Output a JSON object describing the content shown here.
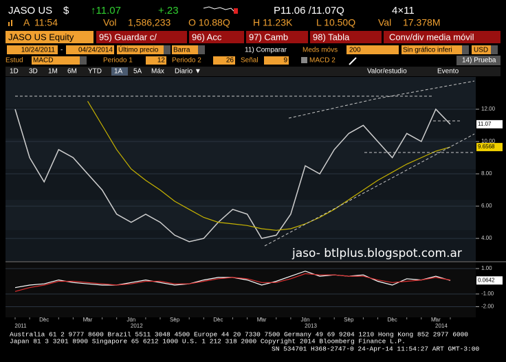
{
  "header": {
    "ticker": "JASO US",
    "currency": "$",
    "last": "↑11.07",
    "change": "+.23",
    "bid_ask": "P11.06 /11.07Q",
    "size": "4×11",
    "time_flag": "A",
    "time": "11:54",
    "vol_label": "Vol",
    "vol": "1,586,233",
    "open": "O 10.88Q",
    "high": "H 11.23K",
    "low": "L 10.50Q",
    "val_label": "Val",
    "val": "17.378M"
  },
  "menu": {
    "security": "JASO US Equity",
    "buttons": [
      "95) Guardar c/",
      "96) Acc",
      "97) Camb",
      "98) Tabla"
    ],
    "title": "Conv/div media móvil"
  },
  "settings": {
    "start": "10/24/2011",
    "dash": "-",
    "end": "04/24/2014",
    "price_field": "Último precio",
    "style": "Barra",
    "compare": "11) Comparar",
    "ma_label": "Meds móvs",
    "ma": "200",
    "lower": "Sin gráfico inferi",
    "ccy": "USD"
  },
  "study": {
    "label": "Estud",
    "study": "MACD",
    "p1_label": "Periodo 1",
    "p1": "12",
    "p2_label": "Periodo 2",
    "p2": "26",
    "signal_label": "Señal",
    "signal": "9",
    "macd2": "MACD 2",
    "test": "14) Prueba"
  },
  "tabs": [
    "1D",
    "3D",
    "1M",
    "6M",
    "YTD",
    "1A",
    "5A",
    "Máx",
    "Diario ▼"
  ],
  "tab_right": [
    "Valor/estudio",
    "Evento"
  ],
  "chart_data": [
    {
      "type": "line",
      "categories": [
        null,
        null,
        "Dec",
        null,
        null,
        "Mar",
        null,
        null,
        "Jun",
        null,
        null,
        "Sep",
        null,
        null,
        "Dec",
        null,
        null,
        "Mar",
        null,
        null,
        "Jun",
        null,
        null,
        "Sep",
        null,
        null,
        "Dec",
        null,
        null,
        "Mar",
        null
      ],
      "year_labels": [
        "2011",
        null,
        null,
        null,
        null,
        null,
        null,
        null,
        "2012",
        null,
        null,
        null,
        null,
        null,
        null,
        null,
        null,
        null,
        null,
        null,
        "2013",
        null,
        null,
        null,
        null,
        null,
        null,
        null,
        null,
        "2014",
        null
      ],
      "series": [
        {
          "color": "#d0d0d0",
          "values": [
            12.0,
            9.0,
            7.5,
            9.5,
            9.0,
            8.0,
            7.0,
            5.5,
            5.0,
            5.5,
            5.0,
            4.2,
            3.8,
            4.0,
            5.0,
            5.8,
            5.5,
            4.0,
            4.2,
            5.5,
            8.5,
            8.0,
            9.5,
            10.5,
            11.0,
            10.0,
            9.0,
            10.5,
            10.0,
            12.0,
            11.07
          ],
          "value_labels": [
            null,
            null,
            null,
            null,
            null,
            null,
            null,
            null,
            null,
            null,
            null,
            null,
            null,
            null,
            null,
            null,
            null,
            null,
            null,
            null,
            null,
            null,
            null,
            null,
            null,
            null,
            null,
            null,
            null,
            null,
            "11.07"
          ]
        },
        {
          "color": "#c8b400",
          "values": [
            null,
            null,
            null,
            null,
            null,
            12.5,
            11.0,
            9.5,
            8.3,
            7.6,
            7.0,
            6.3,
            5.8,
            5.3,
            5.0,
            4.9,
            4.8,
            4.6,
            4.5,
            4.6,
            4.9,
            5.3,
            5.8,
            6.4,
            7.0,
            7.6,
            8.1,
            8.6,
            9.0,
            9.4,
            9.6568
          ],
          "value_labels": [
            null,
            null,
            null,
            null,
            null,
            null,
            null,
            null,
            null,
            null,
            null,
            null,
            null,
            null,
            null,
            null,
            null,
            null,
            null,
            null,
            null,
            null,
            null,
            null,
            null,
            null,
            null,
            null,
            null,
            null,
            "9.6568"
          ]
        }
      ],
      "ylim": [
        2.6,
        14
      ],
      "yticks": [
        {
          "value": 4,
          "label": "4.00"
        },
        {
          "value": 6,
          "label": "6.00"
        },
        {
          "value": 8,
          "label": "8.00"
        },
        {
          "value": 10,
          "label": "10.00"
        },
        {
          "value": 12,
          "label": "12.00"
        }
      ],
      "grid": true
    },
    {
      "type": "line",
      "series": [
        {
          "color": "#ffffff",
          "values": [
            -0.5,
            -0.3,
            -0.2,
            0.1,
            -0.1,
            -0.2,
            -0.3,
            -0.3,
            -0.1,
            0.1,
            -0.1,
            -0.3,
            -0.2,
            0.1,
            0.3,
            0.3,
            0.1,
            -0.3,
            0.0,
            0.4,
            0.8,
            0.4,
            0.5,
            0.4,
            0.5,
            0.0,
            -0.3,
            0.2,
            0.1,
            0.4,
            0.0642
          ],
          "value_labels": [
            null,
            null,
            null,
            null,
            null,
            null,
            null,
            null,
            null,
            null,
            null,
            null,
            null,
            null,
            null,
            null,
            null,
            null,
            null,
            null,
            null,
            null,
            null,
            null,
            null,
            null,
            null,
            null,
            null,
            null,
            "0.0642"
          ]
        },
        {
          "color": "#e03030",
          "values": [
            -0.8,
            -0.5,
            -0.3,
            0.0,
            0.0,
            -0.1,
            -0.2,
            -0.3,
            -0.2,
            0.0,
            0.0,
            -0.2,
            -0.2,
            0.0,
            0.2,
            0.3,
            0.2,
            -0.1,
            -0.1,
            0.2,
            0.6,
            0.5,
            0.5,
            0.4,
            0.4,
            0.1,
            -0.1,
            0.0,
            0.1,
            0.3,
            0.1
          ]
        }
      ],
      "ylim": [
        -2.84,
        1.43
      ],
      "yticks": [
        {
          "value": 1,
          "label": "1.00"
        },
        {
          "value": -1,
          "label": "-1.00"
        },
        {
          "value": -2,
          "label": "-2.00"
        }
      ],
      "grid": true
    }
  ],
  "watermark": "jaso- btlplus.blogspot.com.ar",
  "footer": [
    "Australia 61 2 9777 8600 Brazil 5511 3048 4500 Europe 44 20 7330 7500 Germany 49 69 9204 1210 Hong Kong 852 2977 6000",
    "Japan 81 3 3201 8900      Singapore 65 6212 1000      U.S. 1 212 318 2000      Copyright 2014 Bloomberg Finance L.P.",
    "SN 534701 H368-2747-0 24-Apr-14 11:54:27 ART  GMT-3:00"
  ]
}
